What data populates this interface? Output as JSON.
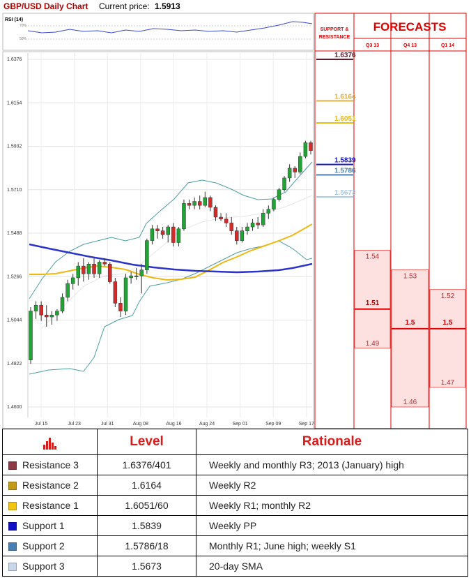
{
  "header": {
    "title": "GBP/USD Daily Chart",
    "price_label": "Current price:",
    "price_value": "1.5913"
  },
  "colors": {
    "red": "#e00000",
    "pink": "#fde0e0",
    "sma": "#f2b70e",
    "long_ma": "#2c33c8",
    "band": "#4a9ea4",
    "candle_up": "#22a336",
    "candle_down": "#d42a2a"
  },
  "rsi": {
    "label": "RSI (14)",
    "ticks": [
      "70%",
      "50%"
    ]
  },
  "chart_data": {
    "type": "candlestick",
    "title": "GBP/USD Daily Chart",
    "y_ticks": [
      "1.6376",
      "1.6154",
      "1.5932",
      "1.5710",
      "1.5488",
      "1.5266",
      "1.5044",
      "1.4822",
      "1.4600"
    ],
    "ylim": [
      1.46,
      1.6376
    ],
    "x_ticks": [
      "Jul 15",
      "Jul 23",
      "Jul 31",
      "Aug 08",
      "Aug 16",
      "Aug 24",
      "Sep 01",
      "Sep 09",
      "Sep 17"
    ],
    "grid": true,
    "candles": [
      [
        1.484,
        1.511,
        1.482,
        1.509
      ],
      [
        1.509,
        1.514,
        1.505,
        1.512
      ],
      [
        1.512,
        1.514,
        1.504,
        1.507
      ],
      [
        1.507,
        1.512,
        1.501,
        1.506
      ],
      [
        1.506,
        1.509,
        1.502,
        1.507
      ],
      [
        1.507,
        1.51,
        1.504,
        1.509
      ],
      [
        1.509,
        1.518,
        1.508,
        1.516
      ],
      [
        1.516,
        1.525,
        1.514,
        1.523
      ],
      [
        1.523,
        1.528,
        1.52,
        1.526
      ],
      [
        1.526,
        1.534,
        1.522,
        1.532
      ],
      [
        1.532,
        1.536,
        1.524,
        1.528
      ],
      [
        1.528,
        1.534,
        1.525,
        1.533
      ],
      [
        1.533,
        1.536,
        1.526,
        1.528
      ],
      [
        1.528,
        1.535,
        1.526,
        1.534
      ],
      [
        1.534,
        1.536,
        1.532,
        1.533
      ],
      [
        1.533,
        1.534,
        1.523,
        1.524
      ],
      [
        1.524,
        1.526,
        1.511,
        1.513
      ],
      [
        1.513,
        1.516,
        1.506,
        1.509
      ],
      [
        1.509,
        1.528,
        1.507,
        1.526
      ],
      [
        1.526,
        1.529,
        1.523,
        1.527
      ],
      [
        1.527,
        1.531,
        1.525,
        1.527
      ],
      [
        1.527,
        1.533,
        1.518,
        1.53
      ],
      [
        1.53,
        1.546,
        1.528,
        1.545
      ],
      [
        1.545,
        1.553,
        1.543,
        1.551
      ],
      [
        1.551,
        1.553,
        1.546,
        1.55
      ],
      [
        1.55,
        1.552,
        1.546,
        1.548
      ],
      [
        1.548,
        1.553,
        1.544,
        1.552
      ],
      [
        1.552,
        1.554,
        1.542,
        1.544
      ],
      [
        1.544,
        1.552,
        1.542,
        1.551
      ],
      [
        1.551,
        1.566,
        1.55,
        1.564
      ],
      [
        1.564,
        1.566,
        1.561,
        1.563
      ],
      [
        1.563,
        1.567,
        1.561,
        1.565
      ],
      [
        1.565,
        1.568,
        1.561,
        1.563
      ],
      [
        1.563,
        1.57,
        1.562,
        1.567
      ],
      [
        1.567,
        1.568,
        1.56,
        1.562
      ],
      [
        1.562,
        1.563,
        1.555,
        1.557
      ],
      [
        1.557,
        1.559,
        1.555,
        1.556
      ],
      [
        1.556,
        1.559,
        1.552,
        1.554
      ],
      [
        1.554,
        1.557,
        1.548,
        1.55
      ],
      [
        1.55,
        1.552,
        1.543,
        1.545
      ],
      [
        1.545,
        1.552,
        1.544,
        1.55
      ],
      [
        1.55,
        1.554,
        1.548,
        1.552
      ],
      [
        1.552,
        1.556,
        1.55,
        1.554
      ],
      [
        1.554,
        1.557,
        1.551,
        1.553
      ],
      [
        1.553,
        1.561,
        1.552,
        1.559
      ],
      [
        1.559,
        1.563,
        1.556,
        1.561
      ],
      [
        1.561,
        1.567,
        1.56,
        1.566
      ],
      [
        1.566,
        1.572,
        1.565,
        1.571
      ],
      [
        1.571,
        1.578,
        1.57,
        1.577
      ],
      [
        1.577,
        1.584,
        1.575,
        1.582
      ],
      [
        1.582,
        1.583,
        1.577,
        1.58
      ],
      [
        1.58,
        1.59,
        1.579,
        1.588
      ],
      [
        1.588,
        1.596,
        1.587,
        1.595
      ],
      [
        1.595,
        1.596,
        1.589,
        1.591
      ]
    ]
  },
  "panel": {
    "sr_title_line1": "SUPPORT &",
    "sr_title_line2": "RESISTANCE",
    "forecasts_title": "FORECASTS",
    "quarters": [
      "Q3 13",
      "Q4 13",
      "Q1 14"
    ],
    "sr_levels": [
      {
        "label": "1.6376",
        "value": 1.6376,
        "color": "#5b1f2c"
      },
      {
        "label": "1.6164",
        "value": 1.6164,
        "color": "#dcb048"
      },
      {
        "label": "1.6051",
        "value": 1.6051,
        "color": "#e7b90c"
      },
      {
        "label": "1.5839",
        "value": 1.5839,
        "color": "#1412c2"
      },
      {
        "label": "1.5786",
        "value": 1.5786,
        "color": "#4c7fb0"
      },
      {
        "label": "1.5673",
        "value": 1.5673,
        "color": "#a8c8e2"
      }
    ],
    "forecasts": [
      {
        "quarter": "Q3 13",
        "high": "1.54",
        "high_value": 1.54,
        "mid": "1.51",
        "mid_value": 1.51,
        "low": "1.49",
        "low_value": 1.49
      },
      {
        "quarter": "Q4 13",
        "high": "1.53",
        "high_value": 1.53,
        "mid": "1.5",
        "mid_value": 1.5,
        "low": "1.46",
        "low_value": 1.46
      },
      {
        "quarter": "Q1 14",
        "high": "1.52",
        "high_value": 1.52,
        "mid": "1.5",
        "mid_value": 1.5,
        "low": "1.47",
        "low_value": 1.47
      }
    ]
  },
  "table": {
    "headers": [
      "Level",
      "Rationale"
    ],
    "rows": [
      {
        "name": "Resistance 3",
        "color": "#8e3a46",
        "level": "1.6376/401",
        "rationale": "Weekly and monthly R3; 2013 (January) high"
      },
      {
        "name": "Resistance 2",
        "color": "#c39a17",
        "level": "1.6164",
        "rationale": "Weekly R2"
      },
      {
        "name": "Resistance 1",
        "color": "#f2c512",
        "level": "1.6051/60",
        "rationale": "Weekly R1; monthly R2"
      },
      {
        "name": "Support 1",
        "color": "#1010c8",
        "level": "1.5839",
        "rationale": "Weekly PP"
      },
      {
        "name": "Support 2",
        "color": "#4a7fb3",
        "level": "1.5786/18",
        "rationale": "Monthly R1; June high; weekly S1"
      },
      {
        "name": "Support 3",
        "color": "#c8d8ea",
        "level": "1.5673",
        "rationale": "20-day SMA"
      }
    ]
  }
}
